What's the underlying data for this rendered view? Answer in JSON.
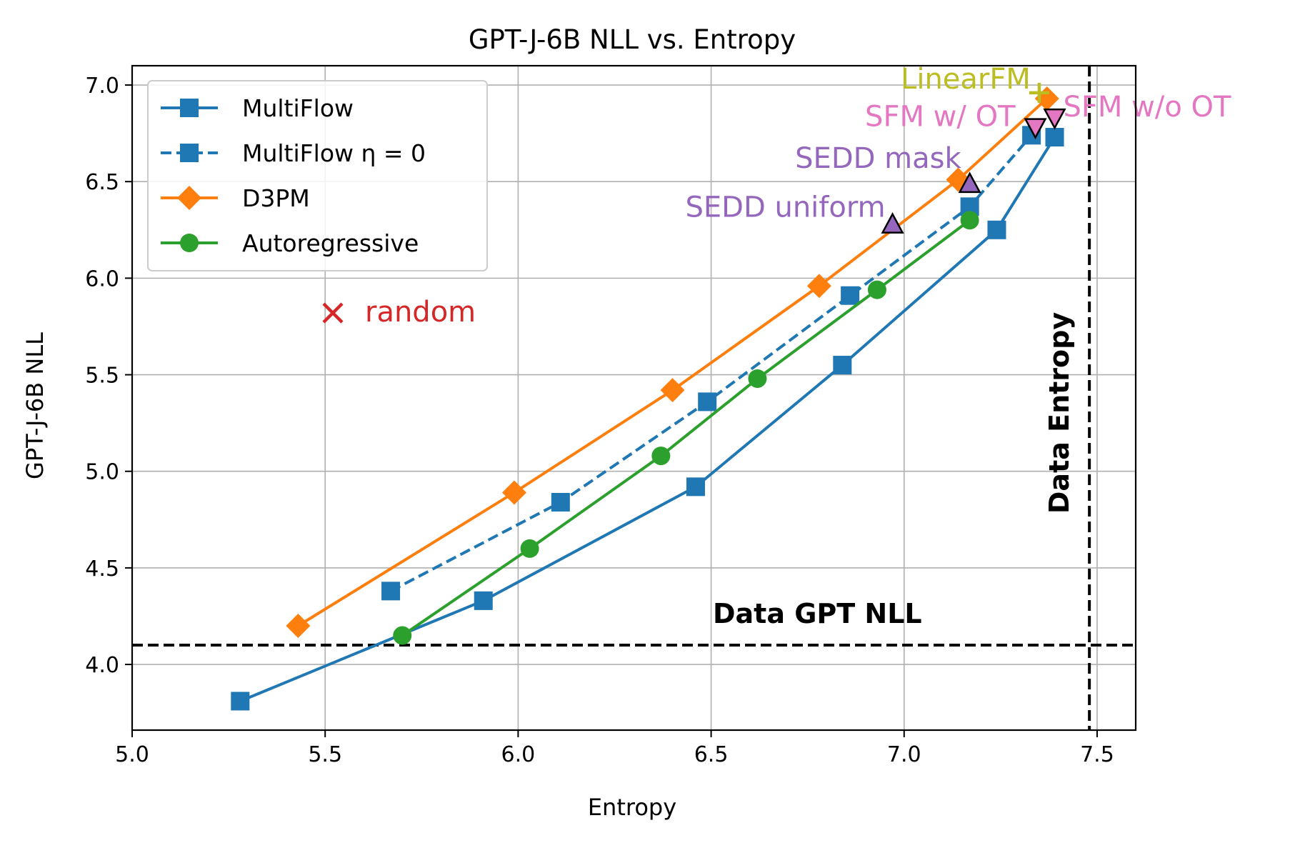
{
  "chart_data": {
    "type": "line",
    "title": "GPT-J-6B NLL vs. Entropy",
    "xlabel": "Entropy",
    "ylabel": "GPT-J-6B NLL",
    "xlim": [
      5.0,
      7.6
    ],
    "ylim": [
      3.66,
      7.1
    ],
    "xticks": [
      5.0,
      5.5,
      6.0,
      6.5,
      7.0,
      7.5
    ],
    "xtick_labels": [
      "5.0",
      "5.5",
      "6.0",
      "6.5",
      "7.0",
      "7.5"
    ],
    "yticks": [
      4.0,
      4.5,
      5.0,
      5.5,
      6.0,
      6.5,
      7.0
    ],
    "ytick_labels": [
      "4.0",
      "4.5",
      "5.0",
      "5.5",
      "6.0",
      "6.5",
      "7.0"
    ],
    "grid": true,
    "legend_position": "top-left",
    "series": [
      {
        "name": "MultiFlow",
        "color": "#1f77b4",
        "linestyle": "solid",
        "marker": "square",
        "x": [
          5.28,
          5.91,
          6.46,
          6.84,
          7.24,
          7.39
        ],
        "y": [
          3.81,
          4.33,
          4.92,
          5.55,
          6.25,
          6.73
        ]
      },
      {
        "name": "MultiFlow η = 0",
        "color": "#1f77b4",
        "linestyle": "dashed",
        "marker": "square",
        "x": [
          5.67,
          6.11,
          6.49,
          6.86,
          7.17,
          7.33
        ],
        "y": [
          4.38,
          4.84,
          5.36,
          5.91,
          6.37,
          6.74
        ]
      },
      {
        "name": "D3PM",
        "color": "#ff7f0e",
        "linestyle": "solid",
        "marker": "diamond",
        "x": [
          5.43,
          5.99,
          6.4,
          6.78,
          7.14,
          7.37
        ],
        "y": [
          4.2,
          4.89,
          5.42,
          5.96,
          6.51,
          6.93
        ]
      },
      {
        "name": "Autoregressive",
        "color": "#2ca02c",
        "linestyle": "solid",
        "marker": "circle",
        "x": [
          5.7,
          6.03,
          6.37,
          6.62,
          6.93,
          7.17
        ],
        "y": [
          4.15,
          4.6,
          5.08,
          5.48,
          5.94,
          6.3
        ]
      }
    ],
    "points": [
      {
        "name": "random",
        "x": 5.52,
        "y": 5.82,
        "marker": "x",
        "color": "#d62728",
        "label": "random",
        "label_pos": "right"
      },
      {
        "name": "SEDD uniform",
        "x": 6.97,
        "y": 6.28,
        "marker": "triangle-up",
        "color": "#9467bd",
        "label": "SEDD uniform",
        "label_pos": "left"
      },
      {
        "name": "SEDD mask",
        "x": 7.17,
        "y": 6.49,
        "marker": "triangle-up",
        "color": "#9467bd",
        "label": "SEDD mask",
        "label_pos": "left"
      },
      {
        "name": "LinearFM",
        "x": 7.35,
        "y": 6.96,
        "marker": "plus",
        "color": "#bcbd22",
        "label": "LinearFM",
        "label_pos": "left"
      },
      {
        "name": "SFM w/ OT",
        "x": 7.34,
        "y": 6.78,
        "marker": "triangle-down",
        "color": "#e377c2",
        "label": "SFM w/ OT",
        "label_pos": "left"
      },
      {
        "name": "SFM w/o OT",
        "x": 7.39,
        "y": 6.83,
        "marker": "triangle-down",
        "color": "#e377c2",
        "label": "SFM w/o OT",
        "label_pos": "right"
      }
    ],
    "reference_lines": [
      {
        "orientation": "horizontal",
        "value": 4.1,
        "label": "Data GPT NLL",
        "color": "#000000"
      },
      {
        "orientation": "vertical",
        "value": 7.48,
        "label": "Data Entropy",
        "color": "#000000"
      }
    ]
  }
}
